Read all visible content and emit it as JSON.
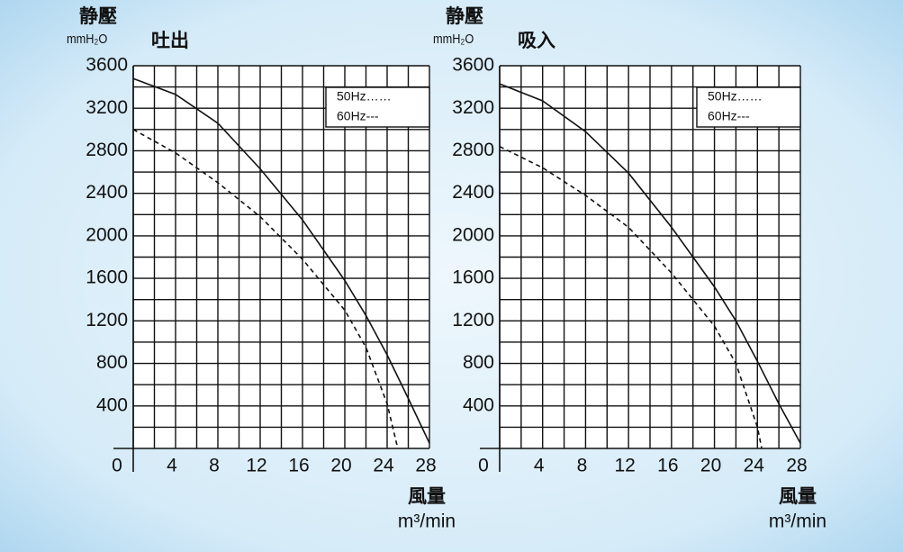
{
  "chart_data": [
    {
      "type": "line",
      "title": "吐出",
      "y_label": "静壓",
      "y_unit": "mmH₂O",
      "x_label": "風量",
      "x_unit": "m³/min",
      "xlim": [
        0,
        28
      ],
      "ylim": [
        0,
        3600
      ],
      "xticks": [
        0,
        4,
        8,
        12,
        16,
        20,
        24,
        28
      ],
      "yticks": [
        400,
        800,
        1200,
        1600,
        2000,
        2400,
        2800,
        3200,
        3600
      ],
      "xminorticks": [
        2,
        6,
        10,
        14,
        18,
        22,
        26
      ],
      "yminorticks": [
        200,
        600,
        1000,
        1400,
        1800,
        2200,
        2600,
        3000,
        3400
      ],
      "grid": true,
      "legend": "upper right",
      "series": [
        {
          "name": "50Hz……",
          "color": "#111111",
          "dash": true,
          "x": [
            0,
            4,
            8,
            12,
            16,
            20,
            22,
            24,
            25
          ],
          "values": [
            3000,
            2780,
            2500,
            2180,
            1780,
            1300,
            950,
            420,
            0
          ]
        },
        {
          "name": "60Hz---",
          "color": "#111111",
          "dash": false,
          "x": [
            0,
            4,
            8,
            12,
            16,
            20,
            22,
            24,
            26,
            28
          ],
          "values": [
            3480,
            3330,
            3060,
            2630,
            2150,
            1580,
            1250,
            880,
            470,
            50
          ]
        }
      ]
    },
    {
      "type": "line",
      "title": "吸入",
      "y_label": "静壓",
      "y_unit": "mmH₂O",
      "x_label": "風量",
      "x_unit": "m³/min",
      "xlim": [
        0,
        28
      ],
      "ylim": [
        0,
        3600
      ],
      "xticks": [
        0,
        4,
        8,
        12,
        16,
        20,
        24,
        28
      ],
      "yticks": [
        400,
        800,
        1200,
        1600,
        2000,
        2400,
        2800,
        3200,
        3600
      ],
      "xminorticks": [
        2,
        6,
        10,
        14,
        18,
        22,
        26
      ],
      "yminorticks": [
        200,
        600,
        1000,
        1400,
        1800,
        2200,
        2600,
        3000,
        3400
      ],
      "grid": true,
      "legend": "upper right",
      "series": [
        {
          "name": "50Hz……",
          "color": "#111111",
          "dash": true,
          "x": [
            0,
            4,
            8,
            12,
            16,
            20,
            22,
            24,
            24.4
          ],
          "values": [
            2840,
            2640,
            2380,
            2080,
            1650,
            1150,
            800,
            200,
            0
          ]
        },
        {
          "name": "60Hz---",
          "color": "#111111",
          "dash": false,
          "x": [
            0,
            4,
            8,
            12,
            16,
            20,
            22,
            24,
            26,
            28
          ],
          "values": [
            3430,
            3270,
            2980,
            2590,
            2080,
            1520,
            1200,
            820,
            420,
            50
          ]
        }
      ]
    }
  ]
}
